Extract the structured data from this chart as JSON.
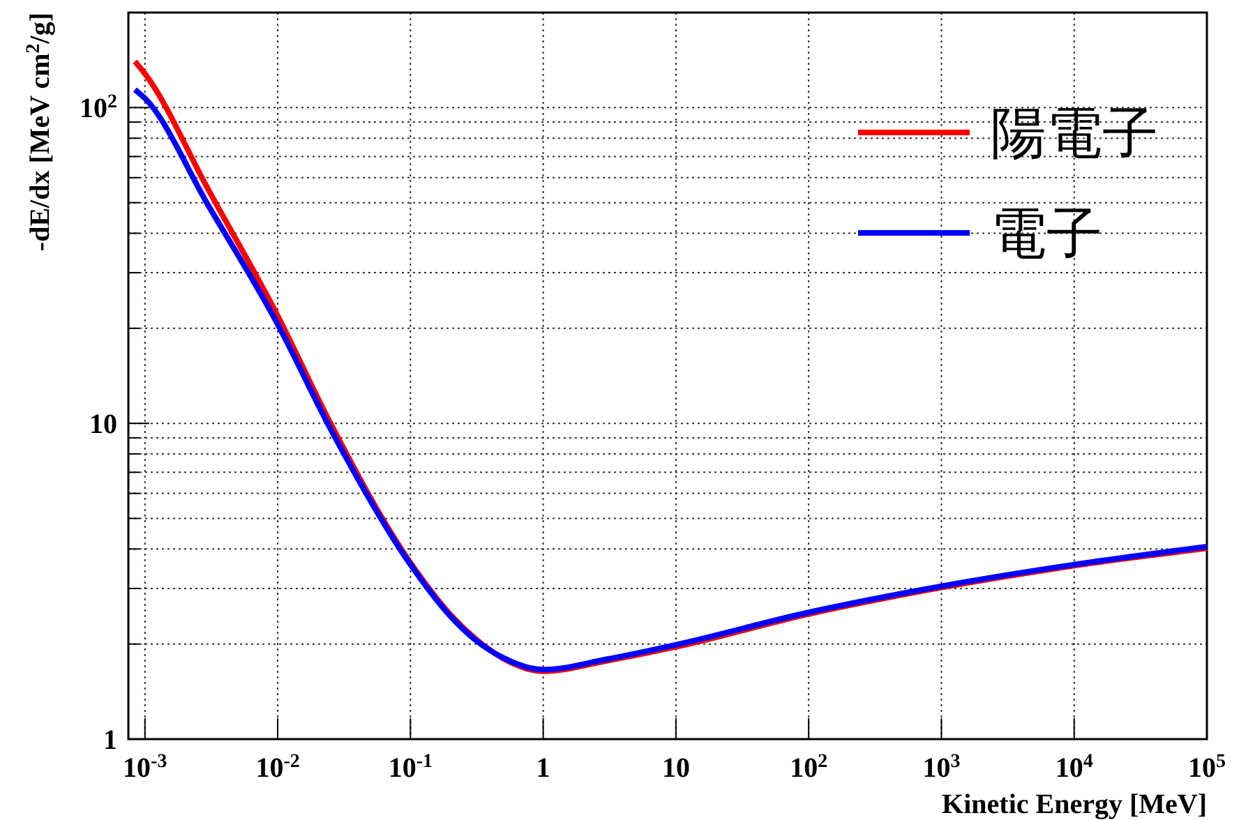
{
  "chart_data": {
    "type": "line",
    "log": "xy",
    "grid": true,
    "legend": "top right",
    "line_style": "solid",
    "marker": "none",
    "xlabel": "Kinetic Energy [MeV]",
    "ylabel": "-dE/dx [MeV cm$^{2}$/g]",
    "xlim": [
      0.00075,
      100000
    ],
    "ylim": [
      1,
      200
    ],
    "xticks": [
      {
        "value": 0.001,
        "label": "10$^{-3}$"
      },
      {
        "value": 0.01,
        "label": "10$^{-2}$"
      },
      {
        "value": 0.1,
        "label": "10$^{-1}$"
      },
      1,
      10,
      {
        "value": 100,
        "label": "10$^{2}$"
      },
      {
        "value": 1000,
        "label": "10$^{3}$"
      },
      {
        "value": 10000,
        "label": "10$^{4}$"
      },
      {
        "value": 100000,
        "label": "10$^{5}$"
      }
    ],
    "yticks": [
      1,
      {
        "value": 2,
        "label": null
      },
      {
        "value": 3,
        "label": null
      },
      {
        "value": 4,
        "label": null
      },
      {
        "value": 5,
        "label": null
      },
      {
        "value": 6,
        "label": null
      },
      {
        "value": 7,
        "label": null
      },
      {
        "value": 8,
        "label": null
      },
      {
        "value": 9,
        "label": null
      },
      10,
      {
        "value": 20,
        "label": null
      },
      {
        "value": 30,
        "label": null
      },
      {
        "value": 40,
        "label": null
      },
      {
        "value": 50,
        "label": null
      },
      {
        "value": 60,
        "label": null
      },
      {
        "value": 70,
        "label": null
      },
      {
        "value": 80,
        "label": null
      },
      {
        "value": 90,
        "label": null
      },
      {
        "value": 100,
        "label": "10$^{2}$"
      },
      {
        "value": 200,
        "label": null
      }
    ],
    "x": [
      0.00084,
      0.001,
      0.003,
      0.01,
      0.025,
      0.1,
      0.2,
      0.3,
      0.5,
      1,
      3,
      10,
      100,
      1000,
      10000,
      100000
    ],
    "series": [
      {
        "name": "陽電子",
        "color": "#ff0000",
        "values": [
          140,
          128,
          55,
          21.9,
          10,
          3.62,
          2.48,
          2.1,
          1.8,
          1.64,
          1.77,
          1.96,
          2.49,
          3.02,
          3.54,
          4.02
        ]
      },
      {
        "name": "電子",
        "color": "#0000ff",
        "values": [
          114,
          107,
          49,
          20.6,
          9.6,
          3.57,
          2.45,
          2.08,
          1.81,
          1.66,
          1.79,
          1.99,
          2.52,
          3.05,
          3.57,
          4.07
        ]
      }
    ]
  }
}
